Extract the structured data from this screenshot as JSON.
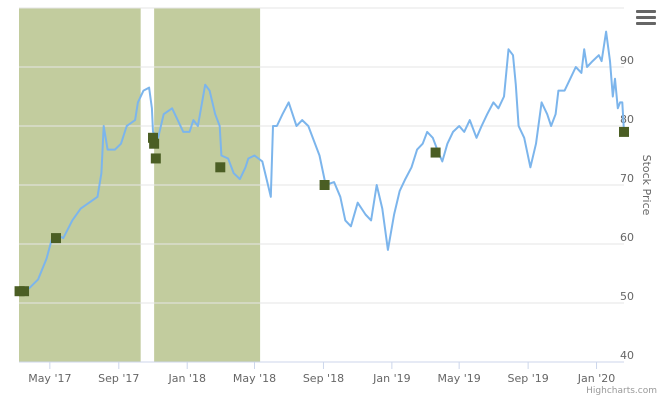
{
  "chart_data": {
    "type": "line",
    "title": "",
    "xlabel": "",
    "ylabel": "Stock Price",
    "ylim": [
      40,
      100
    ],
    "yticks": [
      40,
      50,
      60,
      70,
      80,
      90
    ],
    "xlim": [
      "2017-03-07",
      "2020-02-19"
    ],
    "xticks": [
      {
        "label": "May '17",
        "date": "2017-05-01"
      },
      {
        "label": "Sep '17",
        "date": "2017-09-01"
      },
      {
        "label": "Jan '18",
        "date": "2018-01-01"
      },
      {
        "label": "May '18",
        "date": "2018-05-01"
      },
      {
        "label": "Sep '18",
        "date": "2018-09-01"
      },
      {
        "label": "Jan '19",
        "date": "2019-01-01"
      },
      {
        "label": "May '19",
        "date": "2019-05-01"
      },
      {
        "label": "Sep '19",
        "date": "2019-09-01"
      },
      {
        "label": "Jan '20",
        "date": "2020-01-01"
      }
    ],
    "grid": true,
    "line_color": "#7cb5ec",
    "band_color": "#c2cc9e",
    "marker_color": "#4b5e24",
    "bands": [
      {
        "from": "2017-03-07",
        "to": "2017-10-10"
      },
      {
        "from": "2017-11-03",
        "to": "2018-05-11"
      }
    ],
    "series": [
      {
        "values": [
          [
            "2017-03-08",
            52
          ],
          [
            "2017-03-25",
            52.5
          ],
          [
            "2017-04-10",
            54
          ],
          [
            "2017-04-25",
            57.5
          ],
          [
            "2017-05-05",
            61
          ],
          [
            "2017-05-15",
            61.5
          ],
          [
            "2017-05-25",
            61
          ],
          [
            "2017-06-10",
            64
          ],
          [
            "2017-06-25",
            66
          ],
          [
            "2017-07-10",
            67
          ],
          [
            "2017-07-25",
            68
          ],
          [
            "2017-08-01",
            72
          ],
          [
            "2017-08-05",
            80
          ],
          [
            "2017-08-12",
            76
          ],
          [
            "2017-08-25",
            76
          ],
          [
            "2017-09-05",
            77
          ],
          [
            "2017-09-15",
            80
          ],
          [
            "2017-09-30",
            81
          ],
          [
            "2017-10-05",
            84
          ],
          [
            "2017-10-15",
            86
          ],
          [
            "2017-10-25",
            86.5
          ],
          [
            "2017-10-30",
            83
          ],
          [
            "2017-11-01",
            79
          ],
          [
            "2017-11-10",
            78
          ],
          [
            "2017-11-20",
            82
          ],
          [
            "2017-12-05",
            83
          ],
          [
            "2017-12-15",
            81
          ],
          [
            "2017-12-25",
            79
          ],
          [
            "2018-01-05",
            79
          ],
          [
            "2018-01-12",
            81
          ],
          [
            "2018-01-20",
            80
          ],
          [
            "2018-02-02",
            87
          ],
          [
            "2018-02-10",
            86
          ],
          [
            "2018-02-20",
            82
          ],
          [
            "2018-02-28",
            80
          ],
          [
            "2018-03-03",
            75
          ],
          [
            "2018-03-15",
            74.5
          ],
          [
            "2018-03-25",
            72
          ],
          [
            "2018-04-05",
            71
          ],
          [
            "2018-04-15",
            73
          ],
          [
            "2018-04-20",
            74.5
          ],
          [
            "2018-05-01",
            75
          ],
          [
            "2018-05-15",
            74
          ],
          [
            "2018-05-25",
            70
          ],
          [
            "2018-05-30",
            68
          ],
          [
            "2018-06-03",
            80
          ],
          [
            "2018-06-10",
            80
          ],
          [
            "2018-06-20",
            82
          ],
          [
            "2018-07-01",
            84
          ],
          [
            "2018-07-15",
            80
          ],
          [
            "2018-07-25",
            81
          ],
          [
            "2018-08-05",
            80
          ],
          [
            "2018-08-25",
            75
          ],
          [
            "2018-09-05",
            70
          ],
          [
            "2018-09-20",
            70.5
          ],
          [
            "2018-10-01",
            68
          ],
          [
            "2018-10-10",
            64
          ],
          [
            "2018-10-20",
            63
          ],
          [
            "2018-11-01",
            67
          ],
          [
            "2018-11-15",
            65
          ],
          [
            "2018-11-25",
            64
          ],
          [
            "2018-12-05",
            70
          ],
          [
            "2018-12-15",
            66
          ],
          [
            "2018-12-25",
            59
          ],
          [
            "2019-01-05",
            65
          ],
          [
            "2019-01-15",
            69
          ],
          [
            "2019-01-25",
            71
          ],
          [
            "2019-02-05",
            73
          ],
          [
            "2019-02-15",
            76
          ],
          [
            "2019-02-25",
            77
          ],
          [
            "2019-03-05",
            79
          ],
          [
            "2019-03-15",
            78
          ],
          [
            "2019-03-25",
            75.5
          ],
          [
            "2019-04-01",
            74
          ],
          [
            "2019-04-10",
            77
          ],
          [
            "2019-04-20",
            79
          ],
          [
            "2019-05-01",
            80
          ],
          [
            "2019-05-10",
            79
          ],
          [
            "2019-05-20",
            81
          ],
          [
            "2019-06-01",
            78
          ],
          [
            "2019-06-10",
            80
          ],
          [
            "2019-06-20",
            82
          ],
          [
            "2019-07-01",
            84
          ],
          [
            "2019-07-10",
            83
          ],
          [
            "2019-07-20",
            85
          ],
          [
            "2019-07-28",
            93
          ],
          [
            "2019-08-05",
            92
          ],
          [
            "2019-08-10",
            87
          ],
          [
            "2019-08-15",
            80
          ],
          [
            "2019-08-25",
            78
          ],
          [
            "2019-09-05",
            73
          ],
          [
            "2019-09-15",
            77
          ],
          [
            "2019-09-25",
            84
          ],
          [
            "2019-10-05",
            82
          ],
          [
            "2019-10-12",
            80
          ],
          [
            "2019-10-20",
            82
          ],
          [
            "2019-10-25",
            86
          ],
          [
            "2019-11-05",
            86
          ],
          [
            "2019-11-15",
            88
          ],
          [
            "2019-11-25",
            90
          ],
          [
            "2019-12-05",
            89
          ],
          [
            "2019-12-10",
            93
          ],
          [
            "2019-12-15",
            90
          ],
          [
            "2019-12-25",
            91
          ],
          [
            "2020-01-05",
            92
          ],
          [
            "2020-01-10",
            91
          ],
          [
            "2020-01-18",
            96
          ],
          [
            "2020-01-25",
            91
          ],
          [
            "2020-01-30",
            85
          ],
          [
            "2020-02-03",
            88
          ],
          [
            "2020-02-08",
            83
          ],
          [
            "2020-02-12",
            84
          ],
          [
            "2020-02-16",
            84
          ],
          [
            "2020-02-19",
            79
          ]
        ]
      }
    ],
    "markers": [
      {
        "date": "2017-03-08",
        "value": 52
      },
      {
        "date": "2017-03-16",
        "value": 52
      },
      {
        "date": "2017-05-12",
        "value": 61
      },
      {
        "date": "2017-11-01",
        "value": 78
      },
      {
        "date": "2017-11-03",
        "value": 77
      },
      {
        "date": "2017-11-06",
        "value": 74.5
      },
      {
        "date": "2018-03-01",
        "value": 73
      },
      {
        "date": "2018-09-03",
        "value": 70
      },
      {
        "date": "2019-03-20",
        "value": 75.5
      },
      {
        "date": "2020-02-19",
        "value": 79
      }
    ]
  },
  "credits": "Highcharts.com",
  "menu": {
    "icon": "hamburger-menu-icon"
  }
}
